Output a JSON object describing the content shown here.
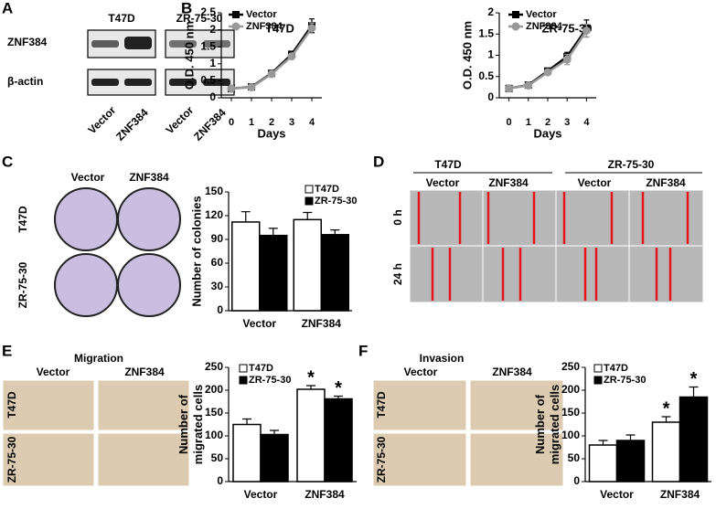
{
  "figure": {
    "labels": [
      "A",
      "B",
      "C",
      "D",
      "E",
      "F"
    ],
    "blot": {
      "cell_lines": [
        "T47D",
        "ZR-75-30"
      ],
      "rows": [
        "ZNF384",
        "β-actin"
      ],
      "lanes": [
        "Vector",
        "ZNF384",
        "Vector",
        "ZNF384"
      ]
    },
    "colony": {
      "columns": [
        "Vector",
        "ZNF384"
      ],
      "rows": [
        "T47D",
        "ZR-75-30"
      ]
    },
    "wound": {
      "cell_lines": [
        "T47D",
        "ZR-75-30"
      ],
      "columns": [
        "Vector",
        "ZNF384",
        "Vector",
        "ZNF384"
      ],
      "rows": [
        "0 h",
        "24 h"
      ]
    },
    "migration": {
      "title": "Migration",
      "columns": [
        "Vector",
        "ZNF384"
      ],
      "rows": [
        "T47D",
        "ZR-75-30"
      ]
    },
    "invasion": {
      "title": "Invasion",
      "columns": [
        "Vector",
        "ZNF384"
      ],
      "rows": [
        "T47D",
        "ZR-75-30"
      ]
    }
  },
  "chart_data": [
    {
      "type": "line",
      "title": "T47D",
      "x_label": "Days",
      "y_label": "O.D. 450 nm",
      "x": [
        0,
        1,
        2,
        3,
        4
      ],
      "xlim": [
        -0.5,
        4.5
      ],
      "xticks": [
        0,
        1,
        2,
        3,
        4
      ],
      "ylim": [
        0,
        2.5
      ],
      "yticks": [
        0,
        0.5,
        1,
        1.5,
        2,
        2.5
      ],
      "series": [
        {
          "name": "Vector",
          "color": "#000000",
          "marker": "square",
          "values": [
            0.27,
            0.32,
            0.72,
            1.28,
            2.12
          ],
          "errors": [
            0.03,
            0.03,
            0.05,
            0.08,
            0.2
          ]
        },
        {
          "name": "ZNF384",
          "color": "#999999",
          "marker": "circle",
          "values": [
            0.27,
            0.31,
            0.7,
            1.22,
            2.05
          ],
          "errors": [
            0.03,
            0.03,
            0.05,
            0.08,
            0.15
          ]
        }
      ]
    },
    {
      "type": "line",
      "title": "ZR-75-30",
      "x_label": "Days",
      "y_label": "O.D. 450 nm",
      "x": [
        0,
        1,
        2,
        3,
        4
      ],
      "xlim": [
        -0.5,
        4.5
      ],
      "xticks": [
        0,
        1,
        2,
        3,
        4
      ],
      "ylim": [
        0,
        2
      ],
      "yticks": [
        0,
        0.5,
        1,
        1.5,
        2
      ],
      "series": [
        {
          "name": "Vector",
          "color": "#000000",
          "marker": "square",
          "values": [
            0.22,
            0.3,
            0.63,
            0.97,
            1.63
          ],
          "errors": [
            0.03,
            0.03,
            0.04,
            0.1,
            0.2
          ]
        },
        {
          "name": "ZNF384",
          "color": "#999999",
          "marker": "circle",
          "values": [
            0.22,
            0.29,
            0.6,
            0.9,
            1.58
          ],
          "errors": [
            0.03,
            0.03,
            0.04,
            0.12,
            0.15
          ]
        }
      ]
    },
    {
      "type": "bar",
      "y_label": "Number of colonies",
      "categories": [
        "Vector",
        "ZNF384"
      ],
      "ylim": [
        0,
        150
      ],
      "yticks": [
        0,
        30,
        60,
        90,
        120,
        150
      ],
      "series": [
        {
          "name": "T47D",
          "color": "#ffffff",
          "values": [
            112,
            115
          ],
          "errors": [
            13,
            9
          ]
        },
        {
          "name": "ZR-75-30",
          "color": "#000000",
          "values": [
            95,
            96
          ],
          "errors": [
            9,
            6
          ]
        }
      ]
    },
    {
      "type": "bar",
      "y_label": "Number of migrated cells",
      "categories": [
        "Vector",
        "ZNF384"
      ],
      "ylim": [
        0,
        250
      ],
      "yticks": [
        0,
        50,
        100,
        150,
        200,
        250
      ],
      "annotations": [
        "*",
        "*"
      ],
      "series": [
        {
          "name": "T47D",
          "color": "#ffffff",
          "values": [
            125,
            202
          ],
          "errors": [
            12,
            8
          ]
        },
        {
          "name": "ZR-75-30",
          "color": "#000000",
          "values": [
            103,
            181
          ],
          "errors": [
            9,
            6
          ]
        }
      ]
    },
    {
      "type": "bar",
      "y_label": "Number of migrated cells",
      "categories": [
        "Vector",
        "ZNF384"
      ],
      "ylim": [
        0,
        250
      ],
      "yticks": [
        0,
        50,
        100,
        150,
        200,
        250
      ],
      "annotations": [
        "*",
        "*"
      ],
      "series": [
        {
          "name": "T47D",
          "color": "#ffffff",
          "values": [
            80,
            130
          ],
          "errors": [
            10,
            12
          ]
        },
        {
          "name": "ZR-75-30",
          "color": "#000000",
          "values": [
            90,
            185
          ],
          "errors": [
            12,
            22
          ]
        }
      ]
    }
  ]
}
